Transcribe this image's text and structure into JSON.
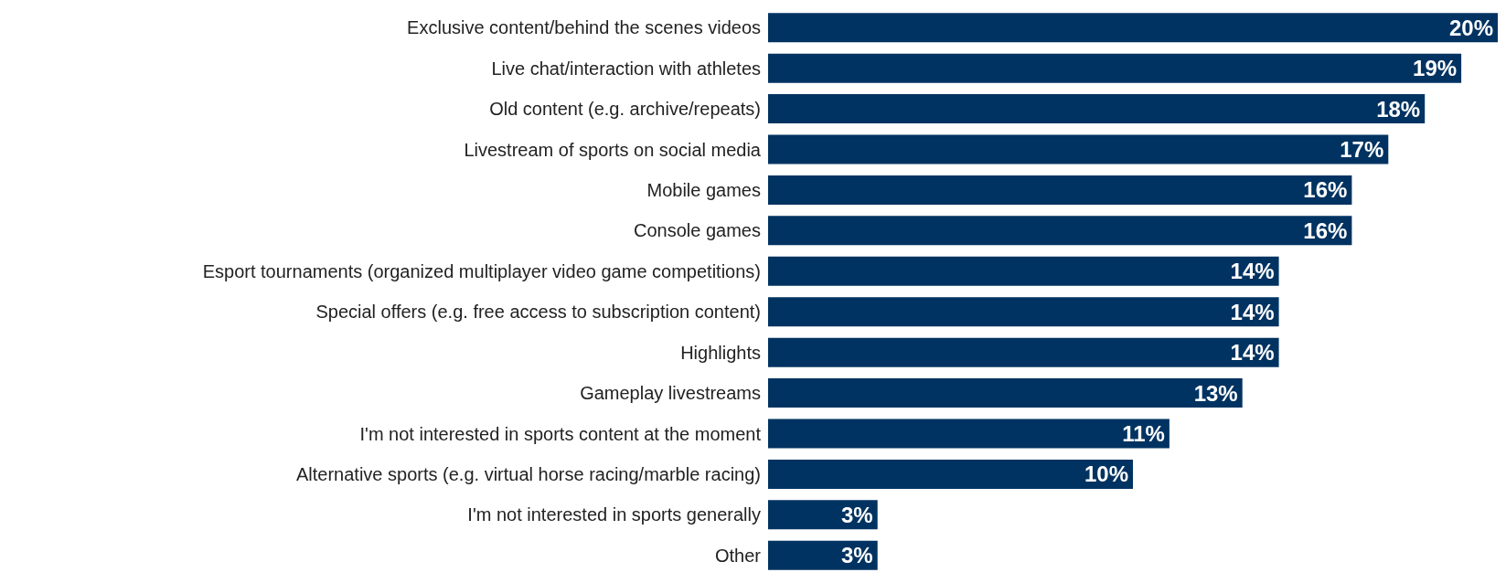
{
  "chart_data": {
    "type": "bar",
    "orientation": "horizontal",
    "categories": [
      "Exclusive content/behind the scenes videos",
      "Live chat/interaction with athletes",
      "Old content (e.g. archive/repeats)",
      "Livestream of sports on social media",
      "Mobile games",
      "Console games",
      "Esport tournaments (organized multiplayer video game competitions)",
      "Special offers (e.g. free access to subscription content)",
      "Highlights",
      "Gameplay livestreams",
      "I'm not interested in sports content at the moment",
      "Alternative sports (e.g. virtual horse racing/marble racing)",
      "I'm not interested in sports generally",
      "Other"
    ],
    "values": [
      20,
      19,
      18,
      17,
      16,
      16,
      14,
      14,
      14,
      13,
      11,
      10,
      3,
      3
    ],
    "value_labels": [
      "20%",
      "19%",
      "18%",
      "17%",
      "16%",
      "16%",
      "14%",
      "14%",
      "14%",
      "13%",
      "11%",
      "10%",
      "3%",
      "3%"
    ],
    "color": "#003361"
  }
}
